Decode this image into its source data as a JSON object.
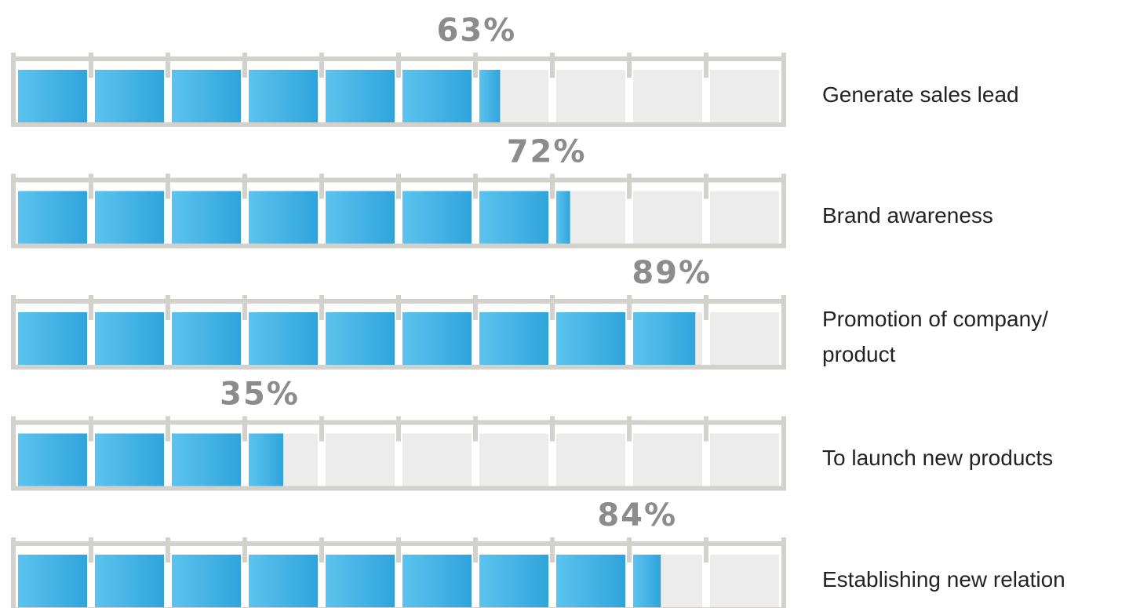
{
  "chart_data": {
    "type": "segmented-bar",
    "categories": [
      "Generate sales lead",
      "Brand awareness",
      "Promotion of company/ product",
      "To launch new products",
      "Establishing new relation"
    ],
    "values": [
      63,
      72,
      89,
      35,
      84
    ],
    "value_labels": [
      "63%",
      "72%",
      "89%",
      "35%",
      "84%"
    ],
    "xlim": [
      0,
      100
    ],
    "color": "#3aaee2"
  }
}
